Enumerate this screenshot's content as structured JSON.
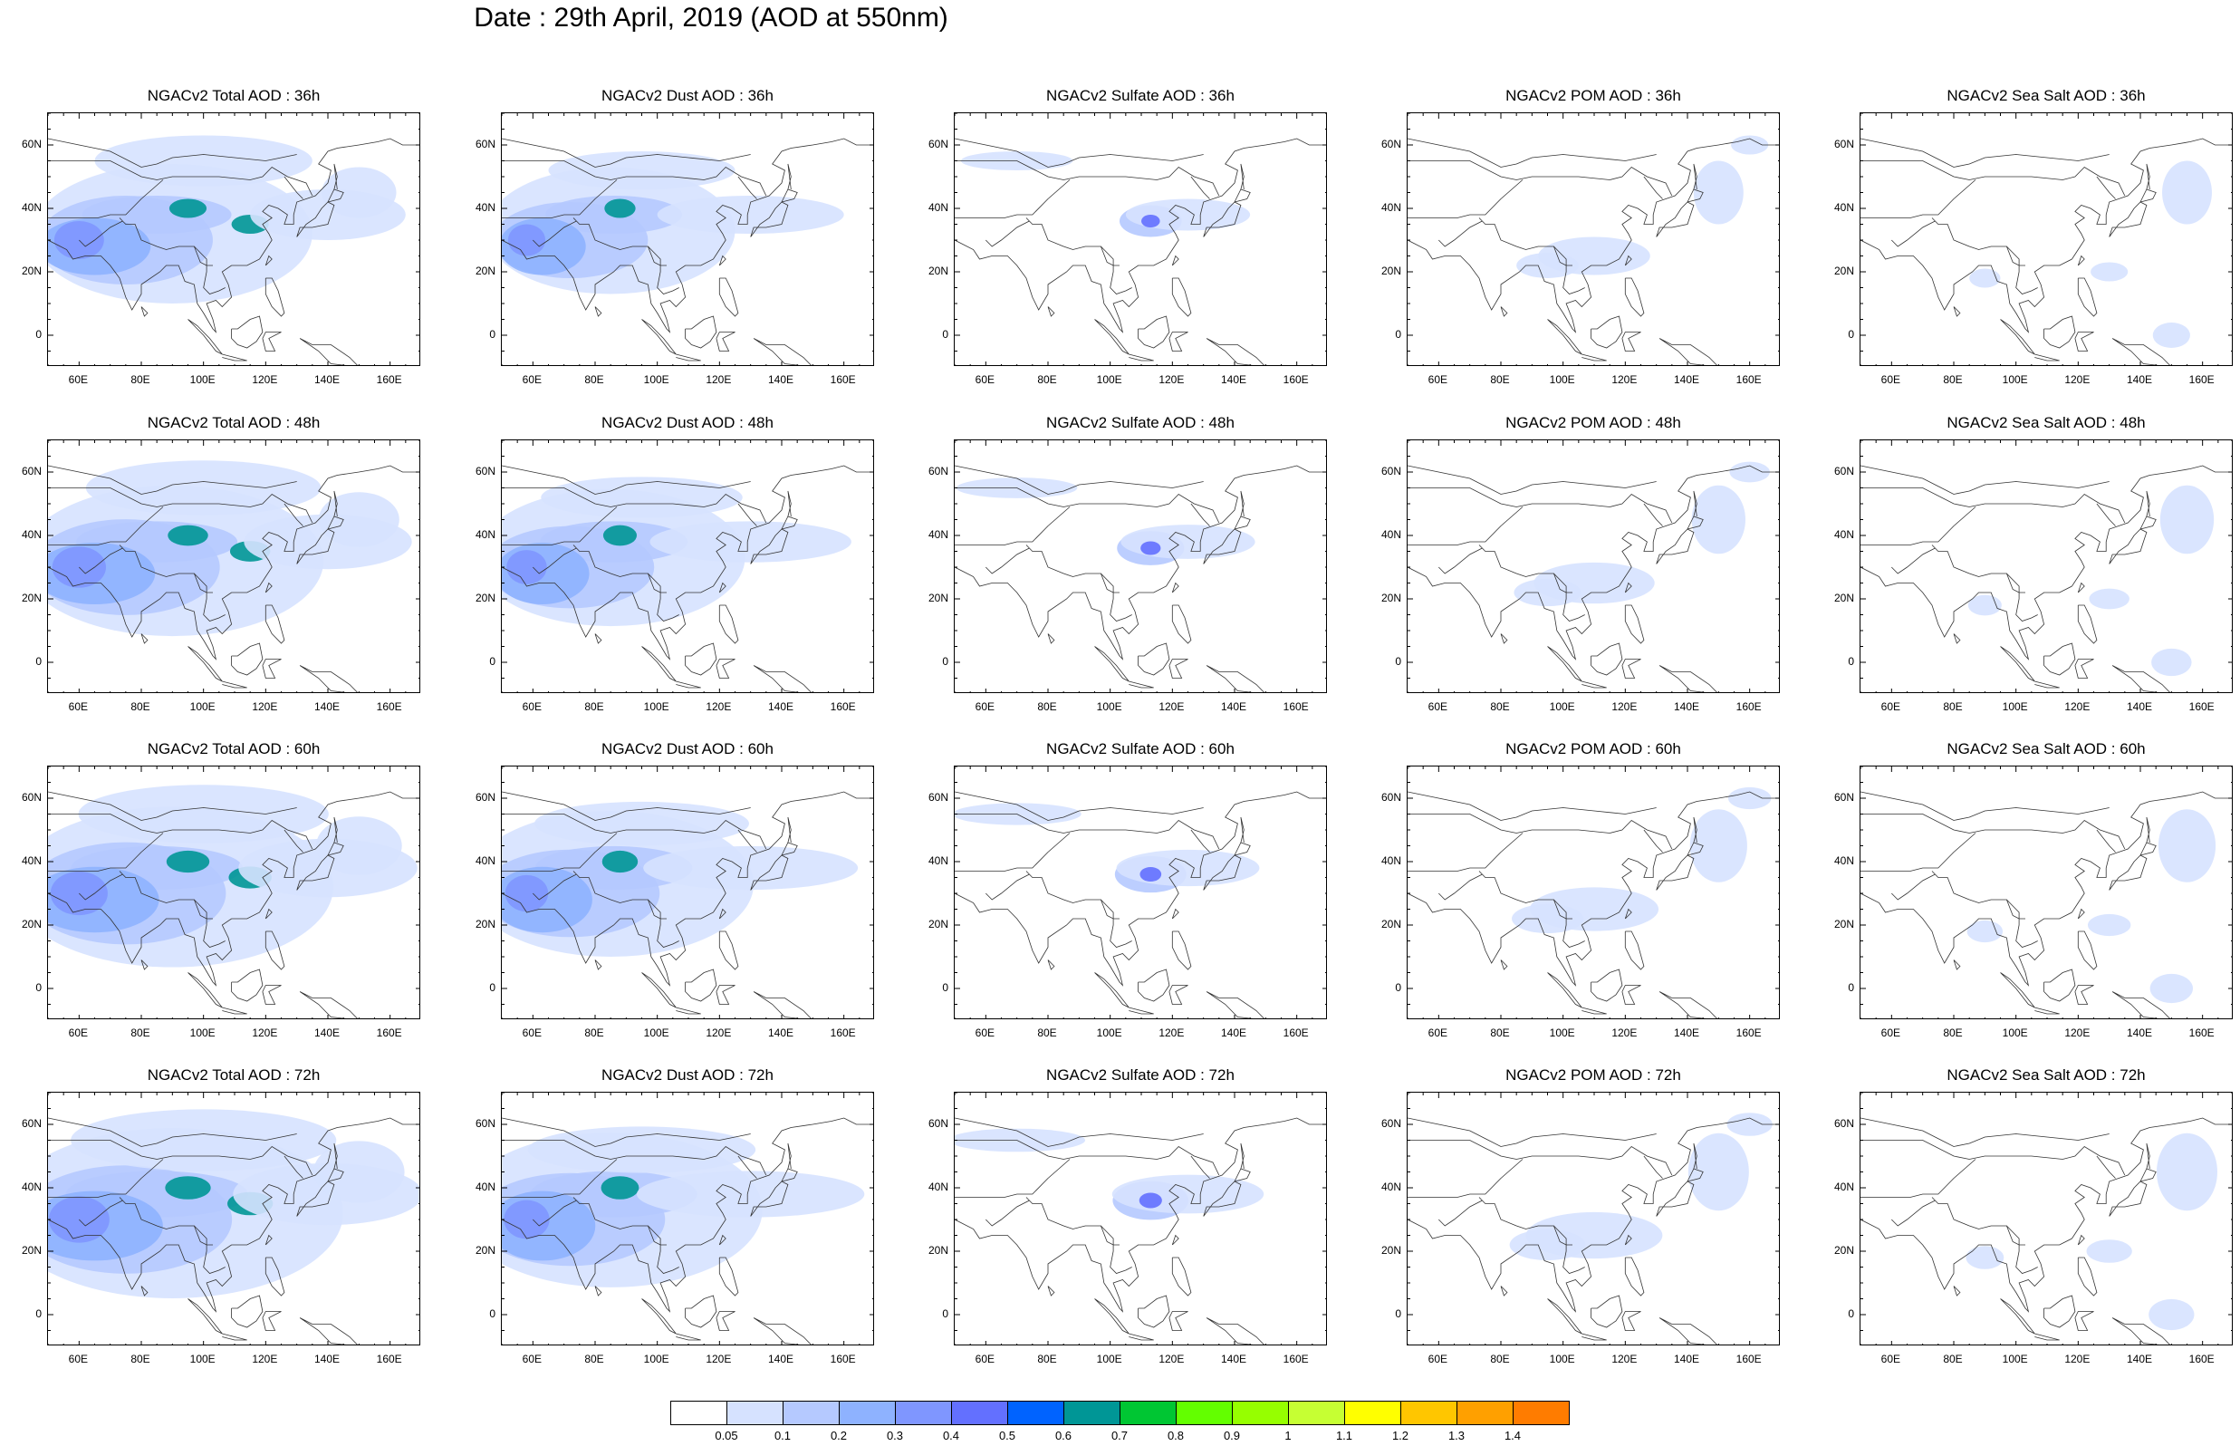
{
  "title": "Date : 29th April, 2019 (AOD at 550nm)",
  "panels": [
    {
      "title": "NGACv2 Total AOD : 36h",
      "species": "total"
    },
    {
      "title": "NGACv2 Dust AOD : 36h",
      "species": "dust"
    },
    {
      "title": "NGACv2 Sulfate AOD : 36h",
      "species": "sulfate"
    },
    {
      "title": "NGACv2 POM AOD : 36h",
      "species": "pom"
    },
    {
      "title": "NGACv2 Sea Salt AOD : 36h",
      "species": "seasalt"
    },
    {
      "title": "NGACv2 Total AOD : 48h",
      "species": "total"
    },
    {
      "title": "NGACv2 Dust AOD : 48h",
      "species": "dust"
    },
    {
      "title": "NGACv2 Sulfate AOD : 48h",
      "species": "sulfate"
    },
    {
      "title": "NGACv2 POM AOD : 48h",
      "species": "pom"
    },
    {
      "title": "NGACv2 Sea Salt AOD : 48h",
      "species": "seasalt"
    },
    {
      "title": "NGACv2 Total AOD : 60h",
      "species": "total"
    },
    {
      "title": "NGACv2 Dust AOD : 60h",
      "species": "dust"
    },
    {
      "title": "NGACv2 Sulfate AOD : 60h",
      "species": "sulfate"
    },
    {
      "title": "NGACv2 POM AOD : 60h",
      "species": "pom"
    },
    {
      "title": "NGACv2 Sea Salt AOD : 60h",
      "species": "seasalt"
    },
    {
      "title": "NGACv2 Total AOD : 72h",
      "species": "total"
    },
    {
      "title": "NGACv2 Dust AOD : 72h",
      "species": "dust"
    },
    {
      "title": "NGACv2 Sulfate AOD : 72h",
      "species": "sulfate"
    },
    {
      "title": "NGACv2 POM AOD : 72h",
      "species": "pom"
    },
    {
      "title": "NGACv2 Sea Salt  AOD : 72h",
      "species": "seasalt"
    }
  ],
  "lat_ticks": [
    "60N",
    "40N",
    "20N",
    "0"
  ],
  "lon_ticks": [
    "60E",
    "80E",
    "100E",
    "120E",
    "140E",
    "160E"
  ],
  "colorbar": {
    "labels": [
      "0.05",
      "0.1",
      "0.2",
      "0.3",
      "0.4",
      "0.5",
      "0.6",
      "0.7",
      "0.8",
      "0.9",
      "1",
      "1.1",
      "1.2",
      "1.3",
      "1.4"
    ],
    "colors": [
      "#ffffff",
      "#d6e2ff",
      "#b5c9ff",
      "#8eb2ff",
      "#7f96ff",
      "#6370ff",
      "#0063ff",
      "#009696",
      "#00c633",
      "#63ff00",
      "#96ff00",
      "#c6ff33",
      "#ffff00",
      "#ffc600",
      "#ffa000",
      "#ff7c00",
      "#ff1900"
    ]
  }
}
